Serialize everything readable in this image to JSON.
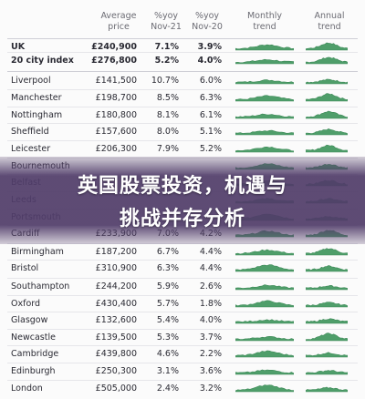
{
  "table": {
    "headers": [
      [
        "Average",
        "price"
      ],
      [
        "%yoy",
        "Nov-21"
      ],
      [
        "%yoy",
        "Nov-20"
      ],
      [
        "Monthly",
        "trend"
      ],
      [
        "Annual",
        "trend"
      ]
    ],
    "rows": [
      {
        "city": "UK",
        "price": "£240,900",
        "yoy21": "7.1%",
        "yoy20": "3.9%"
      },
      {
        "city": "20 city index",
        "price": "£276,800",
        "yoy21": "5.2%",
        "yoy20": "4.0%"
      },
      {
        "city": "Liverpool",
        "price": "£141,500",
        "yoy21": "10.7%",
        "yoy20": "6.0%"
      },
      {
        "city": "Manchester",
        "price": "£198,700",
        "yoy21": "8.5%",
        "yoy20": "6.3%"
      },
      {
        "city": "Nottingham",
        "price": "£180,800",
        "yoy21": "8.1%",
        "yoy20": "6.1%"
      },
      {
        "city": "Sheffield",
        "price": "£157,600",
        "yoy21": "8.0%",
        "yoy20": "5.1%"
      },
      {
        "city": "Leicester",
        "price": "£206,300",
        "yoy21": "7.9%",
        "yoy20": "5.2%"
      },
      {
        "city": "Bournemouth"
      },
      {
        "city": "Belfast"
      },
      {
        "city": "Leeds"
      },
      {
        "city": "Portsmouth"
      },
      {
        "city": "Cardiff",
        "price": "£233,900",
        "yoy21": "7.0%",
        "yoy20": "4.2%"
      },
      {
        "city": "Birmingham",
        "price": "£187,200",
        "yoy21": "6.7%",
        "yoy20": "4.4%"
      },
      {
        "city": "Bristol",
        "price": "£310,900",
        "yoy21": "6.3%",
        "yoy20": "4.4%"
      },
      {
        "city": "Southampton",
        "price": "£244,200",
        "yoy21": "5.9%",
        "yoy20": "2.6%"
      },
      {
        "city": "Oxford",
        "price": "£430,400",
        "yoy21": "5.7%",
        "yoy20": "1.8%"
      },
      {
        "city": "Glasgow",
        "price": "£132,600",
        "yoy21": "5.4%",
        "yoy20": "4.0%"
      },
      {
        "city": "Newcastle",
        "price": "£139,500",
        "yoy21": "5.3%",
        "yoy20": "3.7%"
      },
      {
        "city": "Cambridge",
        "price": "£439,800",
        "yoy21": "4.6%",
        "yoy20": "2.2%"
      },
      {
        "city": "Edinburgh",
        "price": "£250,300",
        "yoy21": "3.1%",
        "yoy20": "3.6%"
      },
      {
        "city": "London",
        "price": "£505,000",
        "yoy21": "2.4%",
        "yoy20": "3.2%"
      }
    ]
  },
  "banner": {
    "lines": [
      "英国股票投资，机遇与",
      "挑战并存分析"
    ]
  }
}
